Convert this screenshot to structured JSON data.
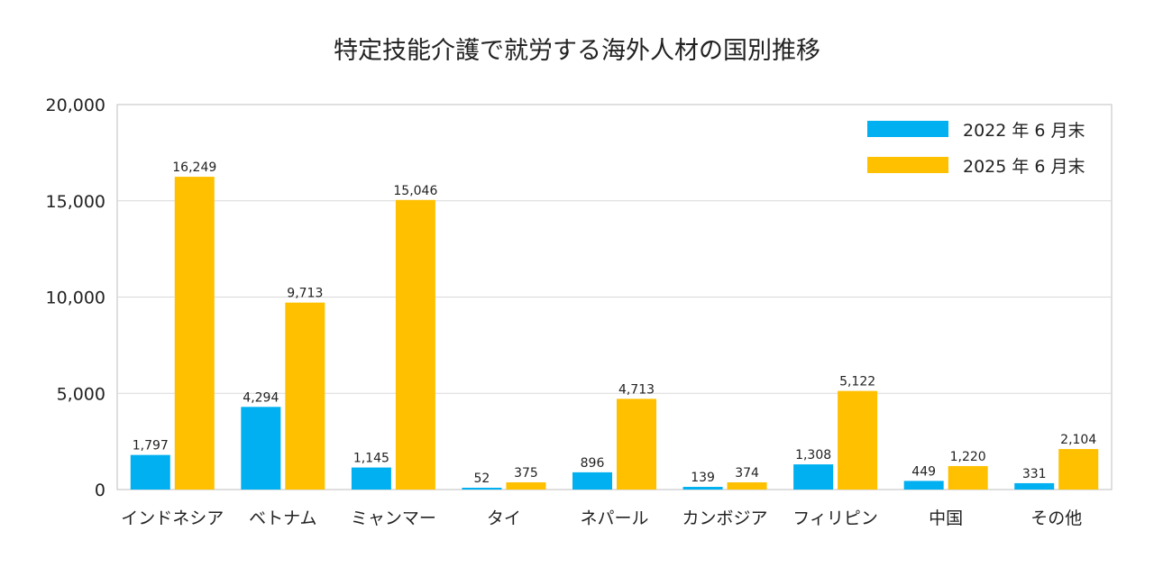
{
  "chart_data": {
    "type": "bar",
    "title": "特定技能介護で就労する海外人材の国別推移",
    "categories": [
      "インドネシア",
      "ベトナム",
      "ミャンマー",
      "タイ",
      "ネパール",
      "カンボジア",
      "フィリピン",
      "中国",
      "その他"
    ],
    "series": [
      {
        "name": "2022 年 6 月末",
        "color": "#00b0f0",
        "values": [
          1797,
          4294,
          1145,
          52,
          896,
          139,
          1308,
          449,
          331
        ]
      },
      {
        "name": "2025 年 6 月末",
        "color": "#ffc000",
        "values": [
          16249,
          9713,
          15046,
          375,
          4713,
          374,
          5122,
          1220,
          2104
        ]
      }
    ],
    "value_labels": [
      [
        "1,797",
        "4,294",
        "1,145",
        "52",
        "896",
        "139",
        "1,308",
        "449",
        "331"
      ],
      [
        "16,249",
        "9,713",
        "15,046",
        "375",
        "4,713",
        "374",
        "5,122",
        "1,220",
        "2,104"
      ]
    ],
    "yticks": [
      "0",
      "5,000",
      "10,000",
      "15,000",
      "20,000"
    ],
    "xlabel": "",
    "ylabel": "",
    "ylim": [
      0,
      20000
    ],
    "grid": true,
    "legend": "top-right"
  }
}
